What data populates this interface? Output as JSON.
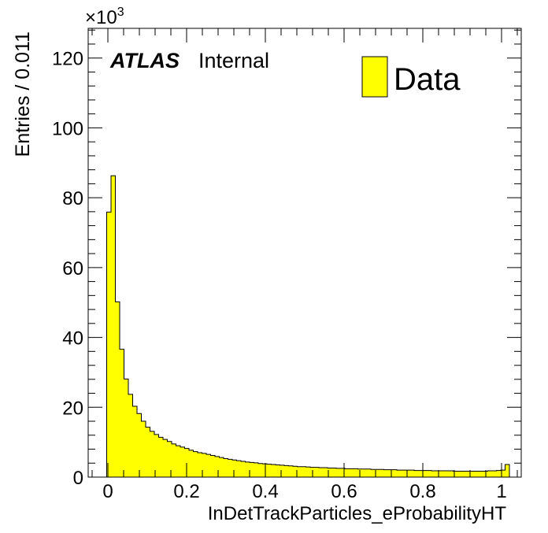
{
  "chart_data": {
    "type": "bar",
    "style": "histogram",
    "xlabel": "InDetTrackParticles_eProbabilityHT",
    "ylabel": "Entries / 0.011",
    "y_multiplier": "×10",
    "y_multiplier_exponent": "3",
    "xlim": [
      -0.05,
      1.05
    ],
    "ylim": [
      0,
      128.5
    ],
    "x_ticks": [
      0,
      0.2,
      0.4,
      0.6,
      0.8,
      1
    ],
    "x_tick_labels": [
      "0",
      "0.2",
      "0.4",
      "0.6",
      "0.8",
      "1"
    ],
    "y_ticks": [
      0,
      20,
      40,
      60,
      80,
      100,
      120
    ],
    "y_tick_labels": [
      "0",
      "20",
      "40",
      "60",
      "80",
      "100",
      "120"
    ],
    "bin_start": -0.003,
    "bin_width": 0.011,
    "series": [
      {
        "name": "Data",
        "color": "#ffff00",
        "values": [
          75.9,
          86.3,
          50.2,
          36.6,
          28.1,
          23.7,
          20.3,
          18.2,
          16.0,
          14.3,
          13.1,
          12.2,
          11.4,
          10.8,
          10.2,
          9.5,
          9.0,
          8.6,
          8.2,
          7.7,
          7.3,
          7.0,
          6.8,
          6.5,
          6.2,
          5.9,
          5.6,
          5.3,
          5.1,
          4.9,
          4.7,
          4.5,
          4.3,
          4.2,
          4.1,
          3.9,
          3.8,
          3.7,
          3.6,
          3.5,
          3.4,
          3.3,
          3.2,
          3.1,
          3.0,
          3.0,
          2.9,
          2.8,
          2.8,
          2.7,
          2.7,
          2.6,
          2.6,
          2.5,
          2.5,
          2.4,
          2.4,
          2.4,
          2.3,
          2.3,
          2.3,
          2.2,
          2.2,
          2.2,
          2.1,
          2.1,
          2.1,
          2.0,
          2.0,
          2.0,
          2.0,
          1.9,
          1.9,
          1.9,
          1.9,
          1.8,
          1.8,
          1.8,
          1.8,
          1.8,
          1.7,
          1.7,
          1.7,
          1.7,
          1.7,
          1.7,
          1.7,
          1.7,
          1.8,
          1.8,
          1.9,
          2.0,
          3.6
        ]
      }
    ],
    "legend": {
      "position": "top-right",
      "entries": [
        "Data"
      ]
    },
    "annotations": {
      "atlas": "ATLAS",
      "status": "Internal"
    },
    "grid": false
  }
}
